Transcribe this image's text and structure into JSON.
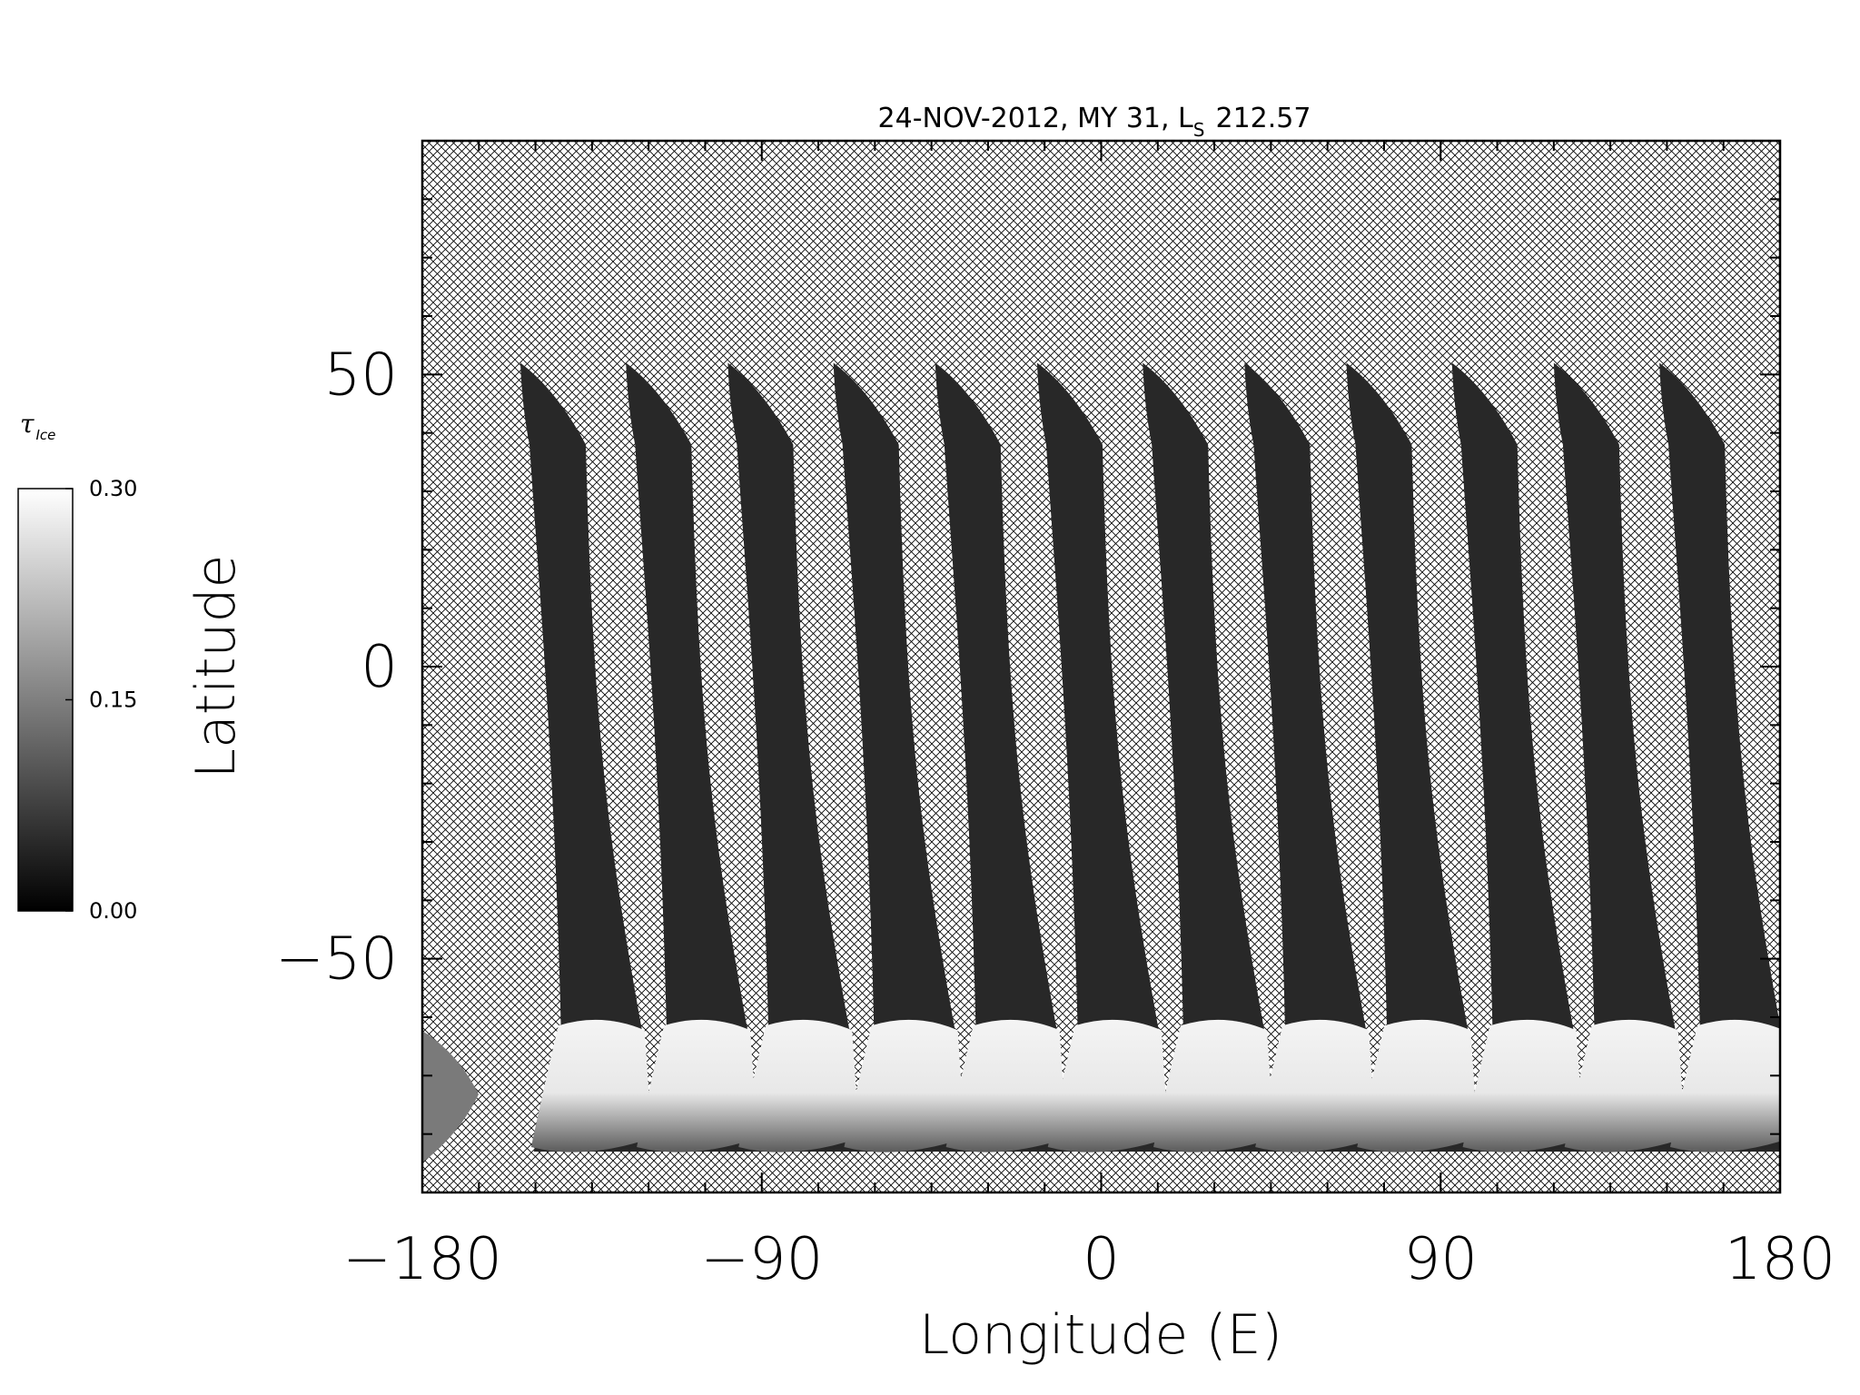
{
  "chart_data": {
    "type": "heatmap",
    "title": "24-NOV-2012, MY 31,  L",
    "title_subscript": "S",
    "title_value": "212.57",
    "xlabel": "Longitude (E)",
    "ylabel": "Latitude",
    "xlim": [
      -180,
      180
    ],
    "ylim": [
      -90,
      90
    ],
    "xticks": [
      -180,
      -90,
      0,
      90,
      180
    ],
    "xtick_labels": [
      "−180",
      "−90",
      "0",
      "90",
      "180"
    ],
    "yticks": [
      50,
      0,
      -50
    ],
    "ytick_labels": [
      "50",
      "0",
      "−50"
    ],
    "missing_data": "cross-hatched",
    "colorbar": {
      "label": "τ",
      "label_subscript": "Ice",
      "min": 0.0,
      "max": 0.3,
      "ticks": [
        0.0,
        0.15,
        0.3
      ],
      "tick_labels": [
        "0.00",
        "0.15",
        "0.30"
      ],
      "colormap": "grayscale"
    },
    "swaths": [
      {
        "lon_north": -154,
        "lon_south": -142,
        "lat_top": 52,
        "lat_bottom": -83
      },
      {
        "lon_north": -126,
        "lon_south": -114,
        "lat_top": 52,
        "lat_bottom": -83
      },
      {
        "lon_north": -99,
        "lon_south": -87,
        "lat_top": 52,
        "lat_bottom": -83
      },
      {
        "lon_north": -71,
        "lon_south": -59,
        "lat_top": 52,
        "lat_bottom": -83
      },
      {
        "lon_north": -44,
        "lon_south": -32,
        "lat_top": 52,
        "lat_bottom": -83
      },
      {
        "lon_north": -17,
        "lon_south": -5,
        "lat_top": 52,
        "lat_bottom": -83
      },
      {
        "lon_north": 11,
        "lon_south": 23,
        "lat_top": 52,
        "lat_bottom": -83
      },
      {
        "lon_north": 38,
        "lon_south": 50,
        "lat_top": 52,
        "lat_bottom": -83
      },
      {
        "lon_north": 65,
        "lon_south": 77,
        "lat_top": 52,
        "lat_bottom": -83
      },
      {
        "lon_north": 93,
        "lon_south": 105,
        "lat_top": 52,
        "lat_bottom": -83
      },
      {
        "lon_north": 120,
        "lon_south": 132,
        "lat_top": 52,
        "lat_bottom": -83
      },
      {
        "lon_north": 148,
        "lon_south": 160,
        "lat_top": 52,
        "lat_bottom": -83
      }
    ],
    "swath_values": {
      "midlatitude_ice_opacity": 0.02,
      "south_polar_ice_opacity": 0.29,
      "south_polar_lat_range": [
        -63,
        -85
      ]
    }
  }
}
